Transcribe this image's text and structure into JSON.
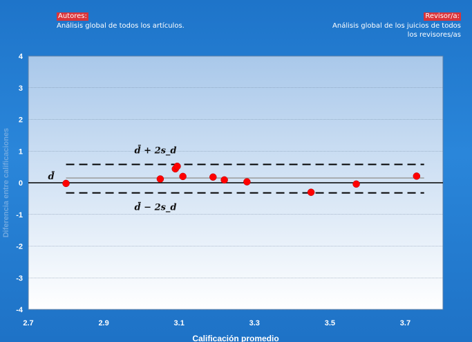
{
  "header": {
    "left_label": "Autores:",
    "left_text": "Análisis global de todos los  artículos.",
    "right_label": "Revisor/a:",
    "right_text_line1": "Análisis global de los juicios de todos",
    "right_text_line2": "los revisores/as"
  },
  "chart_data": {
    "type": "scatter",
    "xlabel": "Calificación promedio",
    "ylabel": "Diferencia entre calificaciones",
    "xlim": [
      2.7,
      3.8
    ],
    "ylim": [
      -4,
      4
    ],
    "xticks": [
      "2.7",
      "2.9",
      "3.1",
      "3.3",
      "3.5",
      "3.7"
    ],
    "yticks": [
      "4",
      "3",
      "2",
      "1",
      "0",
      "-1",
      "-2",
      "-3",
      "-4"
    ],
    "points": [
      {
        "x": 2.8,
        "y": -0.02
      },
      {
        "x": 3.05,
        "y": 0.12
      },
      {
        "x": 3.09,
        "y": 0.44
      },
      {
        "x": 3.095,
        "y": 0.52
      },
      {
        "x": 3.11,
        "y": 0.2
      },
      {
        "x": 3.19,
        "y": 0.18
      },
      {
        "x": 3.22,
        "y": 0.09
      },
      {
        "x": 3.28,
        "y": 0.03
      },
      {
        "x": 3.45,
        "y": -0.3
      },
      {
        "x": 3.57,
        "y": -0.04
      },
      {
        "x": 3.73,
        "y": 0.21
      }
    ],
    "mean": {
      "x_start": 2.8,
      "x_end": 3.75,
      "y": 0.15,
      "label": "d̄"
    },
    "upper_limit": {
      "x_start": 2.8,
      "x_end": 3.75,
      "y": 0.58,
      "label": "d̄ + 2s_d"
    },
    "lower_limit": {
      "x_start": 2.8,
      "x_end": 3.75,
      "y": -0.32,
      "label": "d̄ − 2s_d"
    },
    "colors": {
      "point": "#ff0000",
      "mean_line": "#9a9a9a",
      "limit_lines": "#000000",
      "zero_line": "#000000"
    },
    "grid": true
  }
}
